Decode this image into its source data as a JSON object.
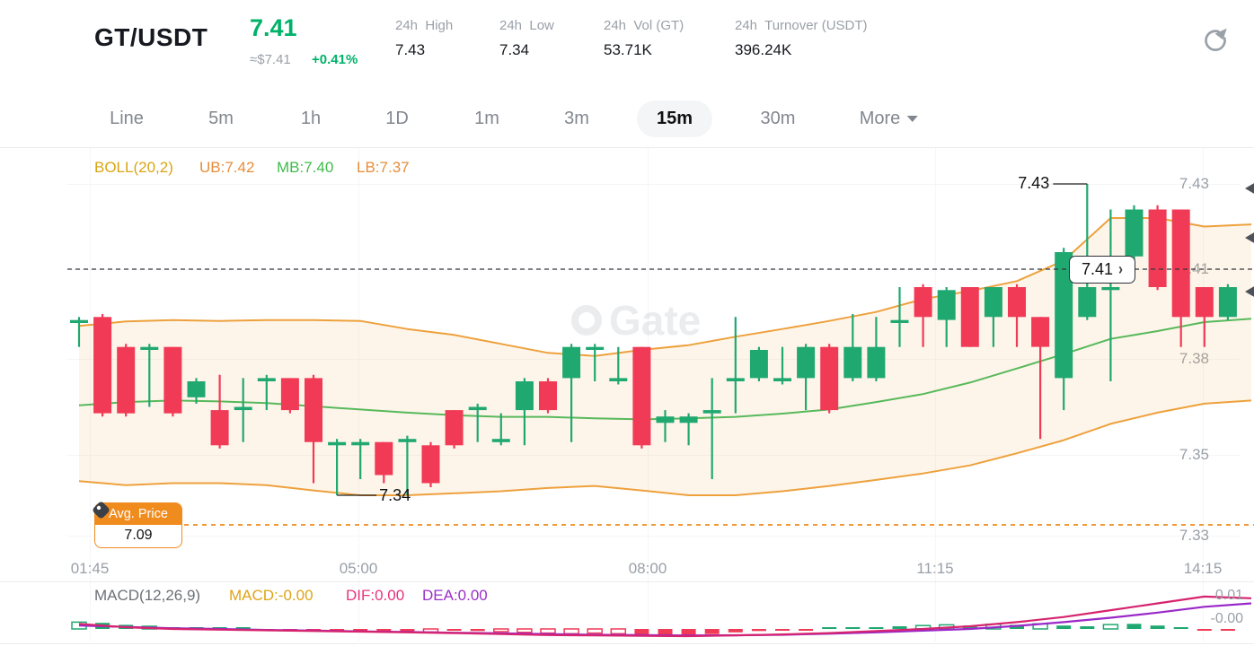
{
  "header": {
    "pair": "GT/USDT",
    "price": "7.41",
    "approx_usd": "≈$7.41",
    "change": "+0.41%",
    "stats": [
      {
        "label": "24h  High",
        "value": "7.43"
      },
      {
        "label": "24h  Low",
        "value": "7.34"
      },
      {
        "label": "24h  Vol (GT)",
        "value": "53.71K"
      },
      {
        "label": "24h  Turnover (USDT)",
        "value": "396.24K"
      }
    ]
  },
  "toolbar": {
    "tabs": [
      "Line",
      "5m",
      "1h",
      "1D",
      "1m",
      "3m",
      "15m",
      "30m"
    ],
    "active": "15m",
    "more_label": "More"
  },
  "indicators": {
    "boll": {
      "name": "BOLL(20,2)",
      "ub": "UB:7.42",
      "mb": "MB:7.40",
      "lb": "LB:7.37"
    },
    "macd": {
      "name": "MACD(12,26,9)",
      "macd": "MACD:-0.00",
      "dif": "DIF:0.00",
      "dea": "DEA:0.00"
    }
  },
  "annotations": {
    "high_label": "7.43",
    "low_label": "7.34",
    "current_price_label": "7.41",
    "avg_price_label": "Avg. Price",
    "avg_price_value": "7.09"
  },
  "axes": {
    "price_ticks": [
      "7.43",
      "7.41",
      "7.38",
      "7.35",
      "7.33"
    ],
    "time_ticks": [
      "01:45",
      "05:00",
      "08:00",
      "11:15",
      "14:15"
    ],
    "macd_ticks": [
      "0.01",
      "-0.00"
    ]
  },
  "watermark_text": "Gate",
  "colors": {
    "up": "#20a871",
    "down": "#f13a55",
    "boll_band": "#eda13d",
    "boll_mid": "#57b95b",
    "band_fill": "rgba(246,174,90,0.13)",
    "price_green": "#00b269",
    "gold": "#d9a514",
    "orange_text": "#e78d3a",
    "green_text": "#3fbc4b",
    "dif": "#d6246e",
    "dea": "#9a28c8",
    "avg_orange": "#f08c1e",
    "dashed_black": "#33373d"
  },
  "chart_data": {
    "type": "candlestick",
    "pair": "GT/USDT",
    "interval": "15m",
    "title": "GT/USDT 15m candlestick with BOLL(20,2) and MACD(12,26,9)",
    "price_axis_anchors": [
      [
        7.43,
        205
      ],
      [
        7.41,
        300
      ],
      [
        7.38,
        400
      ],
      [
        7.35,
        507
      ],
      [
        7.33,
        597
      ]
    ],
    "time_tick_x": [
      100,
      399,
      721,
      1041,
      1339
    ],
    "candles": [
      [
        7.392,
        7.394,
        7.384,
        7.393
      ],
      [
        7.394,
        7.395,
        7.362,
        7.363
      ],
      [
        7.384,
        7.385,
        7.362,
        7.363
      ],
      [
        7.383,
        7.385,
        7.365,
        7.384
      ],
      [
        7.384,
        7.384,
        7.362,
        7.363
      ],
      [
        7.368,
        7.374,
        7.366,
        7.373
      ],
      [
        7.364,
        7.375,
        7.352,
        7.353
      ],
      [
        7.364,
        7.374,
        7.354,
        7.365
      ],
      [
        7.373,
        7.375,
        7.364,
        7.374
      ],
      [
        7.374,
        7.374,
        7.363,
        7.364
      ],
      [
        7.374,
        7.375,
        7.343,
        7.354
      ],
      [
        7.353,
        7.355,
        7.34,
        7.354
      ],
      [
        7.353,
        7.355,
        7.344,
        7.354
      ],
      [
        7.354,
        7.354,
        7.343,
        7.345
      ],
      [
        7.354,
        7.356,
        7.34,
        7.355
      ],
      [
        7.353,
        7.354,
        7.342,
        7.343
      ],
      [
        7.364,
        7.364,
        7.352,
        7.353
      ],
      [
        7.364,
        7.366,
        7.354,
        7.365
      ],
      [
        7.354,
        7.363,
        7.353,
        7.355
      ],
      [
        7.364,
        7.374,
        7.353,
        7.373
      ],
      [
        7.373,
        7.374,
        7.363,
        7.364
      ],
      [
        7.374,
        7.385,
        7.354,
        7.384
      ],
      [
        7.383,
        7.385,
        7.373,
        7.384
      ],
      [
        7.373,
        7.384,
        7.372,
        7.374
      ],
      [
        7.384,
        7.384,
        7.352,
        7.353
      ],
      [
        7.36,
        7.364,
        7.354,
        7.362
      ],
      [
        7.36,
        7.363,
        7.353,
        7.362
      ],
      [
        7.363,
        7.374,
        7.344,
        7.364
      ],
      [
        7.373,
        7.394,
        7.363,
        7.374
      ],
      [
        7.374,
        7.384,
        7.373,
        7.383
      ],
      [
        7.373,
        7.384,
        7.372,
        7.374
      ],
      [
        7.374,
        7.385,
        7.364,
        7.384
      ],
      [
        7.384,
        7.385,
        7.363,
        7.364
      ],
      [
        7.374,
        7.395,
        7.373,
        7.384
      ],
      [
        7.374,
        7.394,
        7.373,
        7.384
      ],
      [
        7.392,
        7.404,
        7.384,
        7.393
      ],
      [
        7.404,
        7.405,
        7.384,
        7.394
      ],
      [
        7.393,
        7.404,
        7.384,
        7.403
      ],
      [
        7.404,
        7.404,
        7.384,
        7.384
      ],
      [
        7.394,
        7.404,
        7.384,
        7.404
      ],
      [
        7.404,
        7.405,
        7.384,
        7.394
      ],
      [
        7.394,
        7.394,
        7.355,
        7.384
      ],
      [
        7.374,
        7.415,
        7.364,
        7.414
      ],
      [
        7.394,
        7.43,
        7.393,
        7.404
      ],
      [
        7.403,
        7.424,
        7.373,
        7.404
      ],
      [
        7.413,
        7.425,
        7.412,
        7.424
      ],
      [
        7.424,
        7.425,
        7.403,
        7.404
      ],
      [
        7.424,
        7.424,
        7.384,
        7.394
      ],
      [
        7.404,
        7.404,
        7.384,
        7.394
      ],
      [
        7.394,
        7.405,
        7.393,
        7.404
      ]
    ],
    "high_annotation": {
      "index": 43,
      "value": 7.43
    },
    "low_annotation": {
      "index": 11,
      "value": 7.34
    },
    "current_price": 7.41,
    "avg_price": 7.09,
    "boll_upper": [
      7.391,
      7.3925,
      7.393,
      7.3927,
      7.393,
      7.393,
      7.3927,
      7.39,
      7.388,
      7.385,
      7.382,
      7.381,
      7.383,
      7.3846,
      7.3874,
      7.39,
      7.3927,
      7.3957,
      7.4,
      7.4027,
      7.406,
      7.412,
      7.422,
      7.422,
      7.42,
      7.4205
    ],
    "boll_middle": [
      7.3655,
      7.3665,
      7.367,
      7.3667,
      7.3662,
      7.3652,
      7.3642,
      7.3632,
      7.3624,
      7.3619,
      7.3619,
      7.3614,
      7.3611,
      7.3614,
      7.3619,
      7.3629,
      7.3642,
      7.3665,
      7.369,
      7.3726,
      7.377,
      7.3816,
      7.3867,
      7.3893,
      7.3923,
      7.3934
    ],
    "boll_lower": [
      7.3435,
      7.3425,
      7.343,
      7.343,
      7.3425,
      7.3412,
      7.34,
      7.34,
      7.3405,
      7.341,
      7.3418,
      7.3423,
      7.3412,
      7.34,
      7.34,
      7.341,
      7.3423,
      7.3438,
      7.3454,
      7.3474,
      7.3505,
      7.3546,
      7.3597,
      7.3632,
      7.366,
      7.367
    ],
    "macd": {
      "hist": [
        2,
        1.8,
        1.2,
        0.8,
        0.5,
        0.3,
        0.2,
        0.2,
        -0.3,
        -0.5,
        -0.8,
        -0.5,
        -0.6,
        -0.8,
        -0.7,
        -0.9,
        -0.3,
        -0.6,
        -0.8,
        -1,
        -1.2,
        -1.4,
        -1.2,
        -1.4,
        -1.6,
        -1.6,
        -1.8,
        -1.5,
        -1,
        -0.6,
        -0.4,
        -0.3,
        0.3,
        0.4,
        0.5,
        0.8,
        1,
        1.2,
        1,
        1.4,
        1.2,
        1.5,
        1,
        0.8,
        1.3,
        1.5,
        1,
        0.4,
        -0.3,
        -0.5
      ],
      "hollow": [
        1,
        0,
        0,
        1,
        1,
        0,
        0,
        0,
        0,
        0,
        0,
        1,
        0,
        0,
        1,
        1,
        0,
        1,
        1,
        1,
        1,
        1,
        1,
        1,
        0,
        0,
        0,
        0,
        0,
        0,
        0,
        0,
        0,
        0,
        0,
        0,
        1,
        1,
        0,
        1,
        0,
        1,
        0,
        0,
        1,
        0,
        0,
        0,
        0,
        0
      ],
      "dif": [
        1.5,
        0.5,
        0,
        -0.2,
        -0.4,
        -0.6,
        -0.8,
        -1,
        -1.2,
        -1.5,
        -1.8,
        -1.9,
        -2,
        -2.1,
        -1.9,
        -1.6,
        -1.2,
        -0.6,
        0,
        0.8,
        2,
        3.5,
        5.5,
        7.5,
        9.5,
        9
      ],
      "dea": [
        1,
        0.6,
        0.2,
        0,
        -0.3,
        -0.5,
        -0.7,
        -0.9,
        -1.1,
        -1.3,
        -1.5,
        -1.7,
        -1.8,
        -1.9,
        -1.85,
        -1.7,
        -1.4,
        -1,
        -0.5,
        0,
        0.9,
        2,
        3.3,
        4.8,
        6.5,
        7.5
      ],
      "unit": 0.001
    }
  }
}
